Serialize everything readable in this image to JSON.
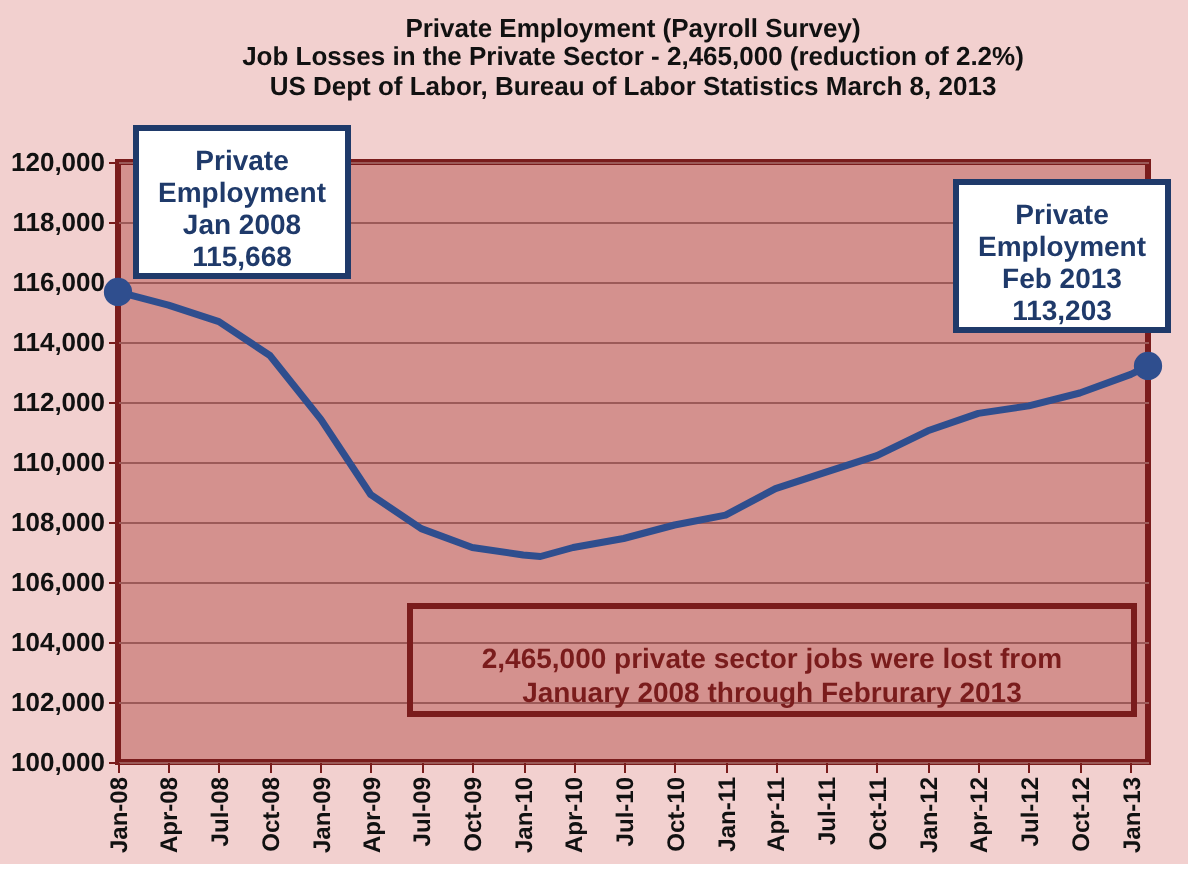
{
  "chart_data": {
    "type": "line",
    "title": "Private Employment (Payroll Survey)",
    "subtitle": "Job Losses in the Private Sector - 2,465,000 (reduction of 2.2%)\nUS Dept of Labor, Bureau of Labor Statistics March 8, 2013",
    "x": [
      "2008-01",
      "2008-04",
      "2008-07",
      "2008-10",
      "2009-01",
      "2009-04",
      "2009-07",
      "2009-10",
      "2010-01",
      "2010-02",
      "2010-04",
      "2010-07",
      "2010-10",
      "2011-01",
      "2011-04",
      "2011-07",
      "2011-10",
      "2012-01",
      "2012-04",
      "2012-07",
      "2012-10",
      "2013-01",
      "2013-02"
    ],
    "series": [
      {
        "color": "#2f4e8e",
        "values": [
          115668,
          115230,
          114680,
          113550,
          111420,
          108910,
          107780,
          107150,
          106900,
          106850,
          107150,
          107450,
          107900,
          108230,
          109110,
          109660,
          110210,
          111040,
          111620,
          111870,
          112300,
          112920,
          113203
        ]
      }
    ],
    "xlim": [
      "2008-01",
      "2013-02"
    ],
    "xticks": [
      {
        "value": "2008-01",
        "label": "Jan-08"
      },
      {
        "value": "2008-04",
        "label": "Apr-08"
      },
      {
        "value": "2008-07",
        "label": "Jul-08"
      },
      {
        "value": "2008-10",
        "label": "Oct-08"
      },
      {
        "value": "2009-01",
        "label": "Jan-09"
      },
      {
        "value": "2009-04",
        "label": "Apr-09"
      },
      {
        "value": "2009-07",
        "label": "Jul-09"
      },
      {
        "value": "2009-10",
        "label": "Oct-09"
      },
      {
        "value": "2010-01",
        "label": "Jan-10"
      },
      {
        "value": "2010-04",
        "label": "Apr-10"
      },
      {
        "value": "2010-07",
        "label": "Jul-10"
      },
      {
        "value": "2010-10",
        "label": "Oct-10"
      },
      {
        "value": "2011-01",
        "label": "Jan-11"
      },
      {
        "value": "2011-04",
        "label": "Apr-11"
      },
      {
        "value": "2011-07",
        "label": "Jul-11"
      },
      {
        "value": "2011-10",
        "label": "Oct-11"
      },
      {
        "value": "2012-01",
        "label": "Jan-12"
      },
      {
        "value": "2012-04",
        "label": "Apr-12"
      },
      {
        "value": "2012-07",
        "label": "Jul-12"
      },
      {
        "value": "2012-10",
        "label": "Oct-12"
      },
      {
        "value": "2013-01",
        "label": "Jan-13"
      }
    ],
    "ylim": [
      100000,
      120000
    ],
    "yticks": [
      {
        "value": 100000,
        "label": "100,000"
      },
      {
        "value": 102000,
        "label": "102,000"
      },
      {
        "value": 104000,
        "label": "104,000"
      },
      {
        "value": 106000,
        "label": "106,000"
      },
      {
        "value": 108000,
        "label": "108,000"
      },
      {
        "value": 110000,
        "label": "110,000"
      },
      {
        "value": 112000,
        "label": "112,000"
      },
      {
        "value": 114000,
        "label": "114,000"
      },
      {
        "value": 116000,
        "label": "116,000"
      },
      {
        "value": 118000,
        "label": "118,000"
      },
      {
        "value": 120000,
        "label": "120,000"
      }
    ],
    "grid": "y",
    "marker": "none",
    "line_style": "solid",
    "annotations": [
      {
        "text": "Private\nEmployment\nJan 2008\n115,668",
        "x": "2008-01",
        "y": 115668
      },
      {
        "text": "Private\nEmployment\nFeb 2013\n113,203",
        "x": "2013-02",
        "y": 113203
      },
      "2,465,000 private sector jobs were lost from\nJanuary 2008 through Februrary 2013"
    ]
  }
}
